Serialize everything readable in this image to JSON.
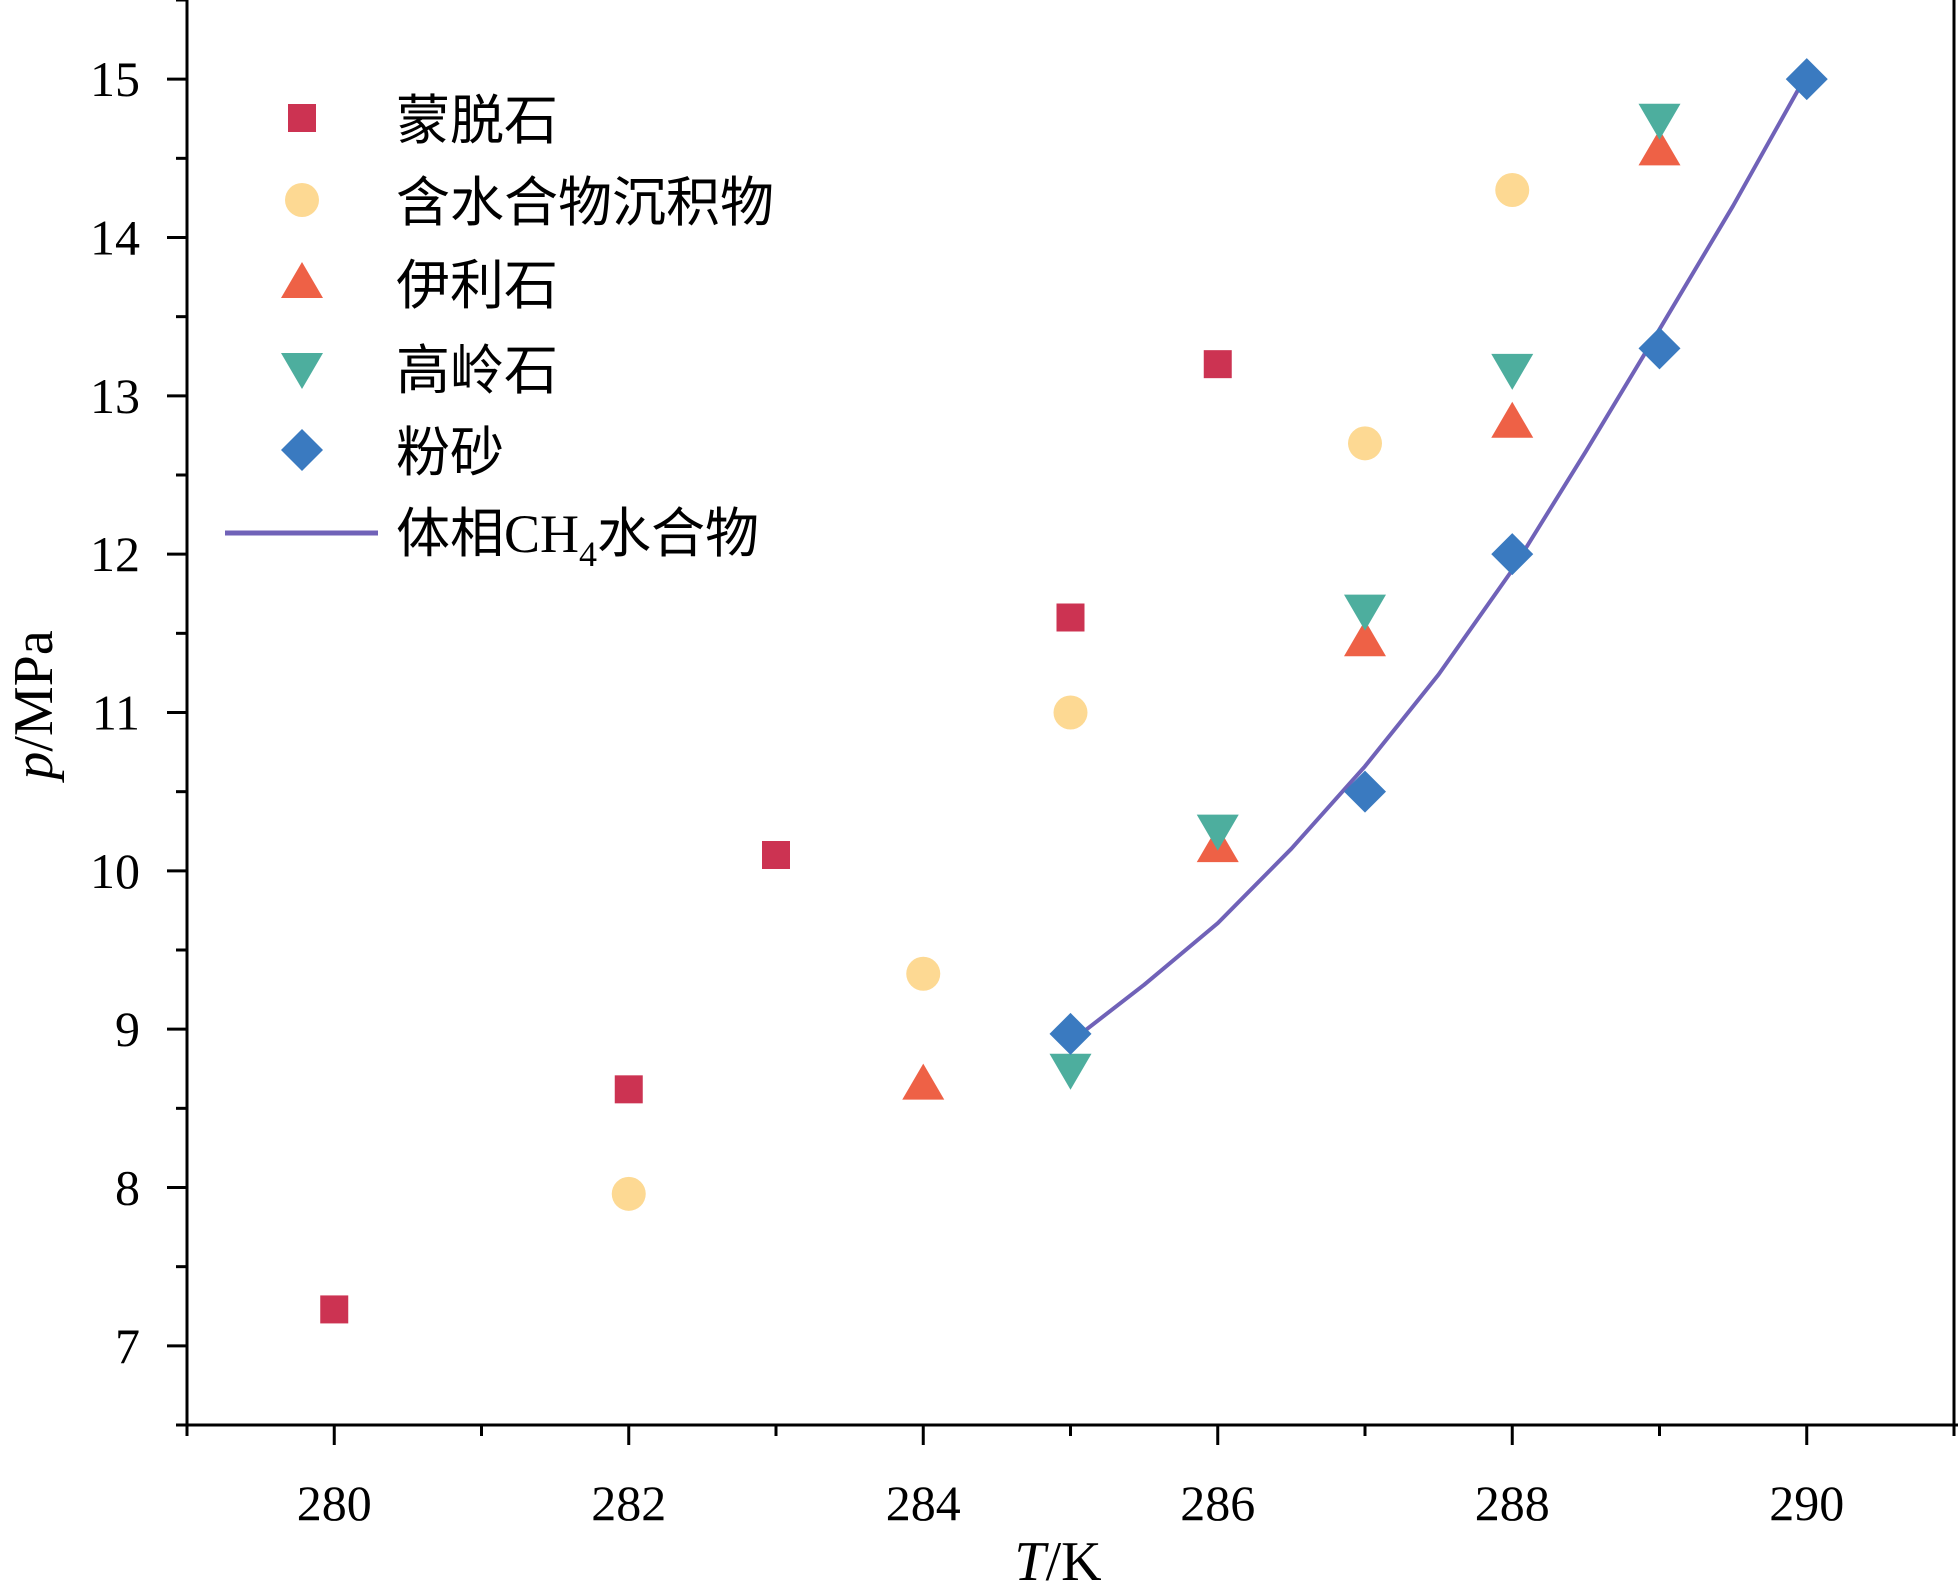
{
  "chart_data": {
    "type": "scatter",
    "title": "",
    "xlabel": {
      "italic": "T",
      "rest": "/K"
    },
    "ylabel": {
      "italic": "p",
      "rest": "/MPa"
    },
    "xlim": [
      279,
      291
    ],
    "ylim": [
      6.5,
      15.5
    ],
    "x_ticks": [
      280,
      282,
      284,
      286,
      288,
      290
    ],
    "x_tick_labels": [
      "280",
      "282",
      "284",
      "286",
      "288",
      "290"
    ],
    "y_ticks": [
      7,
      8,
      9,
      10,
      11,
      12,
      13,
      14,
      15
    ],
    "y_tick_labels": [
      "7",
      "8",
      "9",
      "10",
      "11",
      "12",
      "13",
      "14",
      "15"
    ],
    "grid": false,
    "legend_position": "top-left",
    "series": [
      {
        "name": "蒙脱石",
        "marker": "square",
        "color": "#CC3352",
        "points": [
          [
            280,
            7.23
          ],
          [
            282,
            8.62
          ],
          [
            283,
            10.1
          ],
          [
            285,
            11.6
          ],
          [
            286,
            13.2
          ]
        ]
      },
      {
        "name": "含水合物沉积物",
        "marker": "circle",
        "color": "#FDD993",
        "points": [
          [
            282,
            7.96
          ],
          [
            284,
            9.35
          ],
          [
            285,
            11.0
          ],
          [
            287,
            12.7
          ],
          [
            288,
            14.3
          ]
        ]
      },
      {
        "name": "伊利石",
        "marker": "triangle-up",
        "color": "#EE6146",
        "points": [
          [
            284,
            8.65
          ],
          [
            286,
            10.15
          ],
          [
            287,
            11.45
          ],
          [
            288,
            12.83
          ],
          [
            289,
            14.55
          ]
        ]
      },
      {
        "name": "高岭石",
        "marker": "triangle-down",
        "color": "#4DAE9E",
        "points": [
          [
            285,
            8.75
          ],
          [
            286,
            10.26
          ],
          [
            287,
            11.65
          ],
          [
            288,
            13.17
          ],
          [
            289,
            14.75
          ]
        ]
      },
      {
        "name": "粉砂",
        "marker": "diamond",
        "color": "#3A7AC0",
        "points": [
          [
            285,
            8.97
          ],
          [
            287,
            10.5
          ],
          [
            288,
            12.0
          ],
          [
            289,
            13.3
          ],
          [
            290,
            15.0
          ]
        ]
      }
    ],
    "curve": {
      "name_parts": [
        "体相CH",
        "4",
        "水合物"
      ],
      "type": "line",
      "color": "#7062B8",
      "points": [
        [
          285,
          8.92
        ],
        [
          285.5,
          9.28
        ],
        [
          286,
          9.67
        ],
        [
          286.5,
          10.14
        ],
        [
          287,
          10.66
        ],
        [
          287.5,
          11.24
        ],
        [
          288,
          11.9
        ],
        [
          288.5,
          12.65
        ],
        [
          289,
          13.42
        ],
        [
          289.5,
          14.2
        ],
        [
          290,
          15.03
        ]
      ]
    }
  }
}
